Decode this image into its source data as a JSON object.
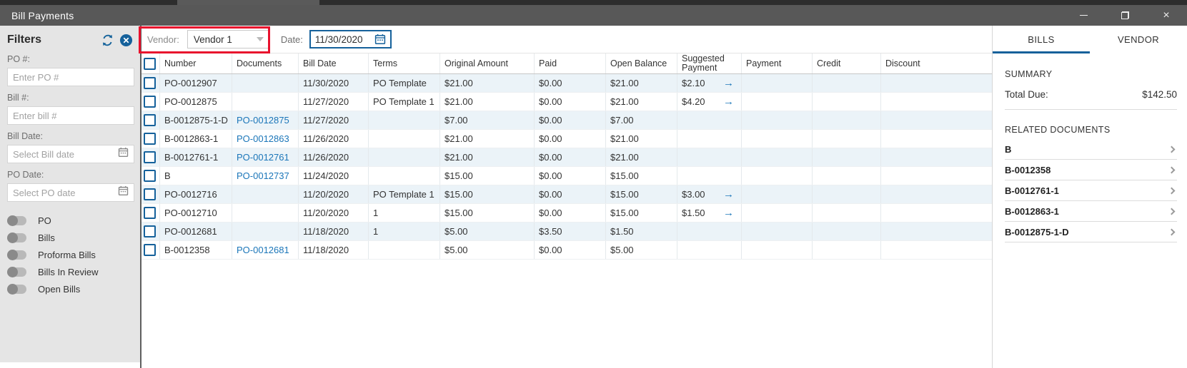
{
  "colors": {
    "accent": "#15619b",
    "link": "#1b76b9",
    "annotation_red": "#e8112d",
    "row_stripe": "#ebf3f8"
  },
  "icons": {
    "arrow_right": "→",
    "caret_down": "▼",
    "close_x": "×",
    "minimize": "–"
  },
  "window": {
    "title": "Bill Payments"
  },
  "sidebar": {
    "title": "Filters",
    "fields": [
      {
        "label": "PO #:",
        "placeholder": "Enter PO #",
        "calendar": false
      },
      {
        "label": "Bill #:",
        "placeholder": "Enter bill #",
        "calendar": false
      },
      {
        "label": "Bill Date:",
        "placeholder": "Select Bill date",
        "calendar": true
      },
      {
        "label": "PO Date:",
        "placeholder": "Select PO date",
        "calendar": true
      }
    ],
    "toggles": [
      {
        "label": "PO",
        "on": false
      },
      {
        "label": "Bills",
        "on": false
      },
      {
        "label": "Proforma Bills",
        "on": false
      },
      {
        "label": "Bills In Review",
        "on": false
      },
      {
        "label": "Open Bills",
        "on": false
      }
    ]
  },
  "toolbar": {
    "vendor_label": "Vendor:",
    "vendor_value": "Vendor 1",
    "date_label": "Date:",
    "date_value": "11/30/2020"
  },
  "table": {
    "columns": [
      "Number",
      "Documents",
      "Bill Date",
      "Terms",
      "Original Amount",
      "Paid",
      "Open Balance",
      "Suggested Payment",
      "Payment",
      "Credit",
      "Discount"
    ],
    "rows": [
      {
        "number": "PO-0012907",
        "documents": "",
        "bill_date": "11/30/2020",
        "terms": "PO Template",
        "original_amount": "$21.00",
        "paid": "$0.00",
        "open_balance": "$21.00",
        "suggested_payment": "$2.10",
        "has_arrow": true,
        "payment": "",
        "credit": "",
        "discount": ""
      },
      {
        "number": "PO-0012875",
        "documents": "",
        "bill_date": "11/27/2020",
        "terms": "PO Template 1",
        "original_amount": "$21.00",
        "paid": "$0.00",
        "open_balance": "$21.00",
        "suggested_payment": "$4.20",
        "has_arrow": true,
        "payment": "",
        "credit": "",
        "discount": ""
      },
      {
        "number": "B-0012875-1-D",
        "documents": "PO-0012875",
        "bill_date": "11/27/2020",
        "terms": "",
        "original_amount": "$7.00",
        "paid": "$0.00",
        "open_balance": "$7.00",
        "suggested_payment": "",
        "has_arrow": false,
        "payment": "",
        "credit": "",
        "discount": ""
      },
      {
        "number": "B-0012863-1",
        "documents": "PO-0012863",
        "bill_date": "11/26/2020",
        "terms": "",
        "original_amount": "$21.00",
        "paid": "$0.00",
        "open_balance": "$21.00",
        "suggested_payment": "",
        "has_arrow": false,
        "payment": "",
        "credit": "",
        "discount": ""
      },
      {
        "number": "B-0012761-1",
        "documents": "PO-0012761",
        "bill_date": "11/26/2020",
        "terms": "",
        "original_amount": "$21.00",
        "paid": "$0.00",
        "open_balance": "$21.00",
        "suggested_payment": "",
        "has_arrow": false,
        "payment": "",
        "credit": "",
        "discount": ""
      },
      {
        "number": "B",
        "documents": "PO-0012737",
        "bill_date": "11/24/2020",
        "terms": "",
        "original_amount": "$15.00",
        "paid": "$0.00",
        "open_balance": "$15.00",
        "suggested_payment": "",
        "has_arrow": false,
        "payment": "",
        "credit": "",
        "discount": ""
      },
      {
        "number": "PO-0012716",
        "documents": "",
        "bill_date": "11/20/2020",
        "terms": "PO Template 1",
        "original_amount": "$15.00",
        "paid": "$0.00",
        "open_balance": "$15.00",
        "suggested_payment": "$3.00",
        "has_arrow": true,
        "payment": "",
        "credit": "",
        "discount": ""
      },
      {
        "number": "PO-0012710",
        "documents": "",
        "bill_date": "11/20/2020",
        "terms": "1",
        "original_amount": "$15.00",
        "paid": "$0.00",
        "open_balance": "$15.00",
        "suggested_payment": "$1.50",
        "has_arrow": true,
        "payment": "",
        "credit": "",
        "discount": ""
      },
      {
        "number": "PO-0012681",
        "documents": "",
        "bill_date": "11/18/2020",
        "terms": "1",
        "original_amount": "$5.00",
        "paid": "$3.50",
        "open_balance": "$1.50",
        "suggested_payment": "",
        "has_arrow": false,
        "payment": "",
        "credit": "",
        "discount": ""
      },
      {
        "number": "B-0012358",
        "documents": "PO-0012681",
        "bill_date": "11/18/2020",
        "terms": "",
        "original_amount": "$5.00",
        "paid": "$0.00",
        "open_balance": "$5.00",
        "suggested_payment": "",
        "has_arrow": false,
        "payment": "",
        "credit": "",
        "discount": ""
      }
    ]
  },
  "right_panel": {
    "tabs": [
      {
        "label": "BILLS",
        "active": true
      },
      {
        "label": "VENDOR",
        "active": false
      }
    ],
    "summary": {
      "heading": "SUMMARY",
      "total_due_label": "Total Due:",
      "total_due_value": "$142.50"
    },
    "related_documents": {
      "heading": "RELATED DOCUMENTS",
      "items": [
        "B",
        "B-0012358",
        "B-0012761-1",
        "B-0012863-1",
        "B-0012875-1-D"
      ]
    }
  }
}
